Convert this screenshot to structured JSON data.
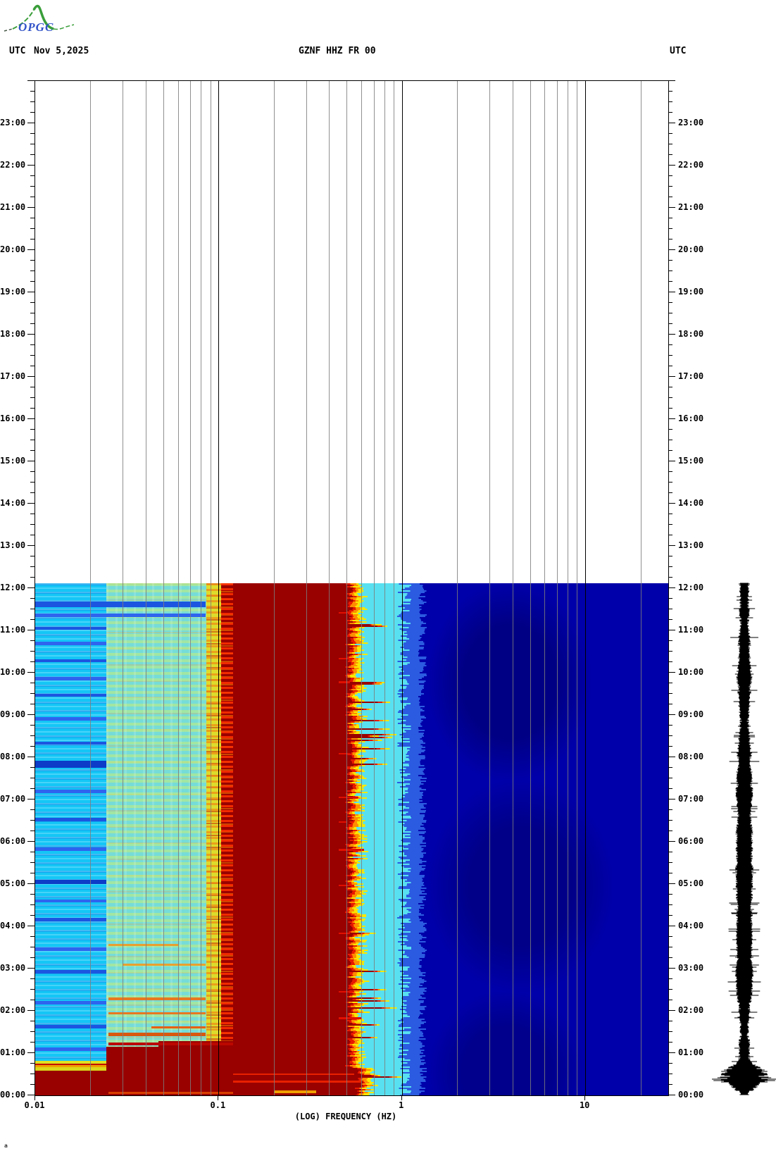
{
  "header": {
    "utc_left": "UTC",
    "date": "Nov 5,2025",
    "station_title": "GZNF HHZ FR 00",
    "utc_right": "UTC"
  },
  "logo": {
    "text": "OPGC",
    "curve_color": "#3A9E3A",
    "text_color": "#3253C8"
  },
  "corner_mark": "a",
  "x_axis": {
    "label": "(LOG) FREQUENCY (HZ)",
    "scale": "log",
    "tick_labels": [
      "0.01",
      "0.1",
      "1",
      "10"
    ],
    "tick_freqs": [
      0.01,
      0.1,
      1,
      10
    ],
    "minor_gridline_freqs": [
      0.02,
      0.03,
      0.04,
      0.05,
      0.06,
      0.07,
      0.08,
      0.09,
      0.2,
      0.3,
      0.4,
      0.5,
      0.6,
      0.7,
      0.8,
      0.9,
      2,
      3,
      4,
      5,
      6,
      7,
      8,
      9,
      20
    ],
    "major_gridline_freqs": [
      0.1,
      1,
      10
    ],
    "min_hz": 0.01,
    "max_hz": 28.3
  },
  "y_axis": {
    "unit": "UTC",
    "hour_labels": [
      "00:00",
      "01:00",
      "02:00",
      "03:00",
      "04:00",
      "05:00",
      "06:00",
      "07:00",
      "08:00",
      "09:00",
      "10:00",
      "11:00",
      "12:00",
      "13:00",
      "14:00",
      "15:00",
      "16:00",
      "17:00",
      "18:00",
      "19:00",
      "20:00",
      "21:00",
      "22:00",
      "23:00"
    ],
    "minor_tick_minutes": 15
  },
  "spectrogram": {
    "coverage": {
      "start": "00:00",
      "end": "12:05"
    },
    "bands": [
      {
        "f0": 0.01,
        "f1": 0.0245,
        "style": "cyan-striped"
      },
      {
        "f0": 0.0245,
        "f1": 0.086,
        "style": "mottle"
      },
      {
        "f0": 0.086,
        "f1": 0.103,
        "style": "yellow-col"
      },
      {
        "f0": 0.103,
        "f1": 0.49,
        "style": "darkred"
      },
      {
        "f0": 0.49,
        "f1": 1.4,
        "style": "fringe"
      },
      {
        "f0": 1.4,
        "f1": 28.3,
        "style": "navy"
      }
    ],
    "staircase": [
      {
        "f0": 0.01,
        "f1": 0.0245,
        "from": "00:36"
      },
      {
        "f0": 0.0245,
        "f1": 0.047,
        "from": "01:09"
      },
      {
        "f0": 0.047,
        "f1": 0.12,
        "from": "01:17"
      }
    ],
    "stripes": [
      {
        "time": "11:37",
        "f0": 0.01,
        "f1": 0.085,
        "h": 8,
        "color": "#1C55E0"
      },
      {
        "time": "11:22",
        "f0": 0.01,
        "f1": 0.085,
        "h": 5,
        "color": "#2E64EE"
      },
      {
        "time": "11:03",
        "f0": 0.01,
        "f1": 0.0245,
        "h": 4,
        "color": "#1C55E0"
      },
      {
        "time": "10:42",
        "f0": 0.01,
        "f1": 0.0245,
        "h": 5,
        "color": "#2E64EE"
      },
      {
        "time": "10:17",
        "f0": 0.01,
        "f1": 0.0245,
        "h": 4,
        "color": "#1C55E0"
      },
      {
        "time": "09:52",
        "f0": 0.01,
        "f1": 0.0245,
        "h": 5,
        "color": "#2E64EE"
      },
      {
        "time": "09:28",
        "f0": 0.01,
        "f1": 0.0245,
        "h": 4,
        "color": "#1C55E0"
      },
      {
        "time": "08:55",
        "f0": 0.01,
        "f1": 0.0245,
        "h": 5,
        "color": "#2E64EE"
      },
      {
        "time": "08:20",
        "f0": 0.01,
        "f1": 0.0245,
        "h": 4,
        "color": "#1C55E0"
      },
      {
        "time": "07:50",
        "f0": 0.01,
        "f1": 0.0245,
        "h": 10,
        "color": "#0C3CC8"
      },
      {
        "time": "07:12",
        "f0": 0.01,
        "f1": 0.0245,
        "h": 5,
        "color": "#2E64EE"
      },
      {
        "time": "06:32",
        "f0": 0.01,
        "f1": 0.0245,
        "h": 5,
        "color": "#1C55E0"
      },
      {
        "time": "05:50",
        "f0": 0.01,
        "f1": 0.0245,
        "h": 5,
        "color": "#2E64EE"
      },
      {
        "time": "05:03",
        "f0": 0.01,
        "f1": 0.0245,
        "h": 6,
        "color": "#0C3CC8"
      },
      {
        "time": "04:36",
        "f0": 0.01,
        "f1": 0.0245,
        "h": 4,
        "color": "#2E64EE"
      },
      {
        "time": "04:10",
        "f0": 0.01,
        "f1": 0.0245,
        "h": 5,
        "color": "#1C55E0"
      },
      {
        "time": "03:28",
        "f0": 0.01,
        "f1": 0.0245,
        "h": 5,
        "color": "#2E64EE"
      },
      {
        "time": "02:56",
        "f0": 0.01,
        "f1": 0.0245,
        "h": 5,
        "color": "#1C55E0"
      },
      {
        "time": "02:12",
        "f0": 0.01,
        "f1": 0.0245,
        "h": 5,
        "color": "#2E64EE"
      },
      {
        "time": "01:38",
        "f0": 0.01,
        "f1": 0.0245,
        "h": 5,
        "color": "#1C55E0"
      },
      {
        "time": "01:06",
        "f0": 0.01,
        "f1": 0.0245,
        "h": 5,
        "color": "#2E64EE"
      },
      {
        "time": "00:07",
        "f0": 0.01,
        "f1": 0.0245,
        "h": 4,
        "color": "#30D8E8"
      }
    ],
    "streaks": [
      {
        "time": "02:17",
        "f0": 0.025,
        "f1": 0.085,
        "h": 4,
        "color": "#E87820"
      },
      {
        "time": "01:57",
        "f0": 0.025,
        "f1": 0.085,
        "h": 3,
        "color": "#E87820"
      },
      {
        "time": "01:37",
        "f0": 0.043,
        "f1": 0.085,
        "h": 3,
        "color": "#E86010"
      },
      {
        "time": "01:27",
        "f0": 0.025,
        "f1": 0.085,
        "h": 5,
        "color": "#D85810"
      },
      {
        "time": "03:06",
        "f0": 0.03,
        "f1": 0.085,
        "h": 3,
        "color": "#E8A030"
      },
      {
        "time": "03:34",
        "f0": 0.025,
        "f1": 0.06,
        "h": 3,
        "color": "#E8A030"
      },
      {
        "time": "01:13",
        "f0": 0.025,
        "f1": 0.12,
        "h": 4,
        "color": "#BB0800"
      },
      {
        "time": "00:46",
        "f0": 0.01,
        "f1": 0.0245,
        "h": 6,
        "color": "#E0E020"
      },
      {
        "time": "00:44",
        "f0": 0.01,
        "f1": 0.0245,
        "h": 2,
        "color": "#C01000"
      },
      {
        "time": "00:41",
        "f0": 0.01,
        "f1": 0.0245,
        "h": 4,
        "color": "#F0A000"
      },
      {
        "time": "00:38",
        "f0": 0.01,
        "f1": 0.0245,
        "h": 5,
        "color": "#D8D818"
      },
      {
        "time": "00:04",
        "f0": 0.025,
        "f1": 0.12,
        "h": 3,
        "color": "#D84000"
      },
      {
        "time": "00:05",
        "f0": 0.2,
        "f1": 0.34,
        "h": 4,
        "color": "#F0A000"
      },
      {
        "time": "05:49",
        "f0": 0.45,
        "f1": 0.62,
        "h": 3,
        "color": "#E01000"
      },
      {
        "time": "04:58",
        "f0": 0.45,
        "f1": 0.55,
        "h": 2,
        "color": "#E01000"
      },
      {
        "time": "07:03",
        "f0": 0.45,
        "f1": 0.58,
        "h": 2,
        "color": "#E01000"
      },
      {
        "time": "09:47",
        "f0": 0.45,
        "f1": 0.52,
        "h": 3,
        "color": "#E01000"
      },
      {
        "time": "02:27",
        "f0": 0.45,
        "f1": 0.55,
        "h": 2,
        "color": "#E01000"
      },
      {
        "time": "01:50",
        "f0": 0.45,
        "f1": 0.6,
        "h": 3,
        "color": "#E01000"
      },
      {
        "time": "10:20",
        "f0": 0.45,
        "f1": 0.55,
        "h": 2,
        "color": "#E01000"
      },
      {
        "time": "08:05",
        "f0": 0.45,
        "f1": 0.52,
        "h": 2,
        "color": "#E01000"
      },
      {
        "time": "06:28",
        "f0": 0.45,
        "f1": 0.5,
        "h": 2,
        "color": "#E01000"
      },
      {
        "time": "11:25",
        "f0": 0.45,
        "f1": 0.5,
        "h": 2,
        "color": "#E01000"
      },
      {
        "time": "03:50",
        "f0": 0.45,
        "f1": 0.52,
        "h": 2,
        "color": "#E01000"
      },
      {
        "time": "00:20",
        "f0": 0.12,
        "f1": 0.6,
        "h": 3,
        "color": "#E82000"
      },
      {
        "time": "00:30",
        "f0": 0.12,
        "f1": 0.55,
        "h": 2,
        "color": "#E82000"
      }
    ]
  },
  "seismogram": {
    "description": "vertical black ground-motion trace, 00:00-12:05 UTC",
    "burst_time": "00:20-00:40"
  },
  "chart_data": {
    "type": "heatmap",
    "subtype": "seismic spectrogram (log frequency vs time of day)",
    "title": "GZNF HHZ FR 00",
    "date": "Nov 5,2025",
    "xlabel": "(LOG) FREQUENCY (HZ)",
    "x_ticks": [
      "0.01",
      "0.1",
      "1",
      "10"
    ],
    "x_range_hz": [
      0.01,
      28.3
    ],
    "ylabel": "UTC",
    "y_range": [
      "00:00",
      "24:00"
    ],
    "y_tick_interval": "1 hour",
    "data_coverage": [
      "00:00",
      "12:05"
    ],
    "legend": "none (color = spectral power: blue low, cyan/green/yellow mid, red high)",
    "grid": "gray minor log gridlines, black decade lines at 0.1, 1 and 10 Hz",
    "regions": [
      {
        "freq_hz": [
          0.01,
          0.025
        ],
        "value": "mid power - cyan with horizontal blue striping"
      },
      {
        "freq_hz": [
          0.025,
          0.086
        ],
        "value": "mid power - turquoise/green mottle with yellow-orange streaks"
      },
      {
        "freq_hz": [
          0.086,
          0.12
        ],
        "value": "high power - yellow column and bright red striping at 0.1 Hz"
      },
      {
        "freq_hz": [
          0.12,
          0.49
        ],
        "value": "saturated maximum - solid dark red (ocean microseism band)"
      },
      {
        "freq_hz": [
          0.49,
          1.4
        ],
        "value": "steep roll-off - jagged red/orange/yellow/cyan transition"
      },
      {
        "freq_hz": [
          1.4,
          28.3
        ],
        "value": "low power - uniform navy blue"
      }
    ],
    "events": [
      {
        "time": "00:00-01:15",
        "note": "broadband saturation: dark red extends down to 0.01 Hz in steps (00:36 / 01:09 / 01:17)"
      },
      {
        "time": "00:20-00:40",
        "note": "high-amplitude burst, also visible on right-hand seismogram trace"
      },
      {
        "time": "12:05",
        "note": "end of recorded data; remainder of day blank"
      }
    ]
  }
}
